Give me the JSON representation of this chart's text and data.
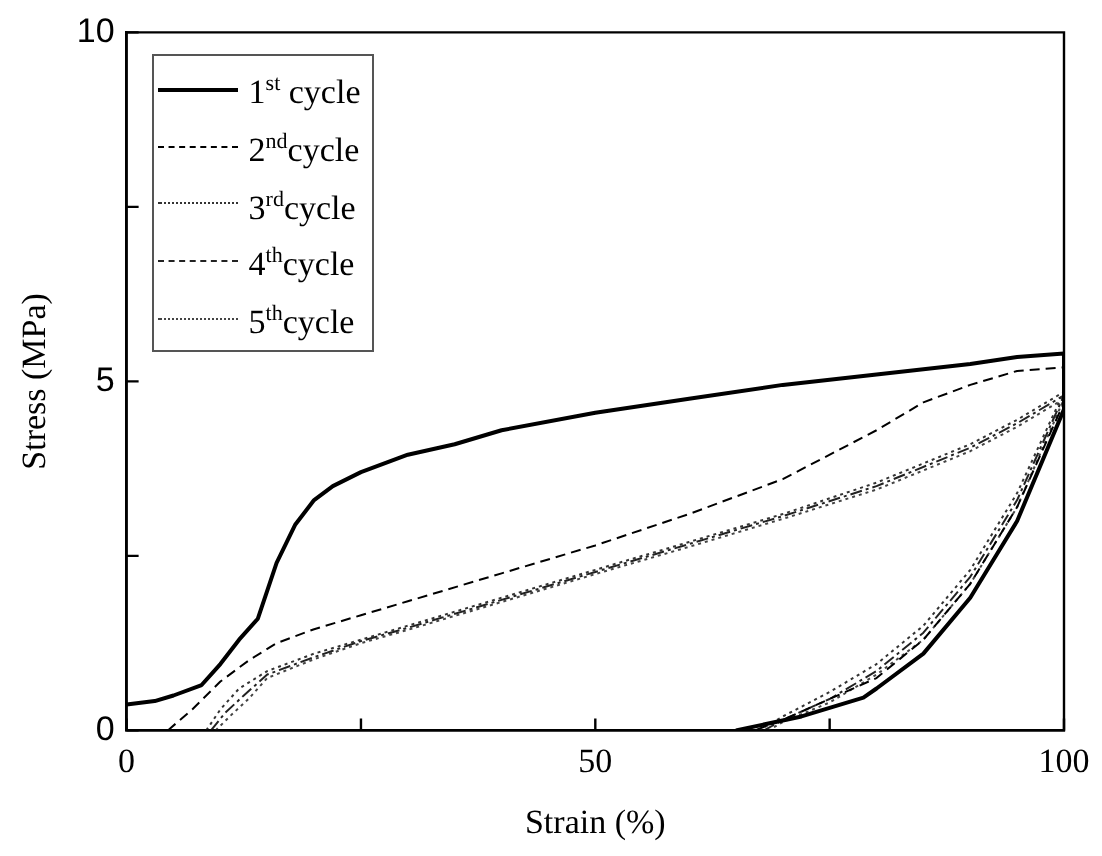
{
  "chart_data": {
    "type": "line",
    "xlabel": "Strain (%)",
    "ylabel": "Stress (MPa)",
    "xlim": [
      0,
      100
    ],
    "ylim": [
      0,
      10
    ],
    "xticks": [
      0,
      {
        "value": 25,
        "label": null
      },
      50,
      {
        "value": 75,
        "label": null
      },
      100
    ],
    "yticks": [
      0,
      {
        "value": 2.5,
        "label": null
      },
      5,
      {
        "value": 7.5,
        "label": null
      },
      10
    ],
    "legend": "top left",
    "series": [
      {
        "name": "1$^{st}$ cycle",
        "color": "#000000",
        "line_style": "solid",
        "x": [
          0,
          3,
          5,
          8,
          10,
          12,
          14,
          16,
          18,
          20,
          22,
          25,
          30,
          35,
          40,
          50,
          60,
          70,
          80,
          90,
          95,
          100,
          100,
          95,
          90,
          85,
          80,
          78.6,
          72,
          65
        ],
        "values": [
          0.37,
          0.42,
          0.5,
          0.65,
          0.95,
          1.3,
          1.6,
          2.4,
          2.95,
          3.3,
          3.5,
          3.7,
          3.95,
          4.1,
          4.3,
          4.55,
          4.75,
          4.95,
          5.1,
          5.25,
          5.35,
          5.4,
          4.6,
          3.0,
          1.9,
          1.1,
          0.6,
          0.47,
          0.2,
          0
        ]
      },
      {
        "name": "2$^{nd}$cycle",
        "color": "#000000",
        "line_style": "dashed",
        "x": [
          4.4,
          7,
          10,
          13,
          16,
          20,
          25,
          30,
          40,
          50,
          60,
          70,
          80,
          85,
          90,
          95,
          100,
          100,
          95,
          90,
          85,
          80,
          75,
          70,
          67
        ],
        "values": [
          0,
          0.3,
          0.7,
          1.0,
          1.25,
          1.45,
          1.65,
          1.85,
          2.25,
          2.65,
          3.1,
          3.6,
          4.3,
          4.7,
          4.95,
          5.15,
          5.2,
          4.7,
          3.2,
          2.1,
          1.3,
          0.75,
          0.45,
          0.15,
          0
        ]
      },
      {
        "name": "3$^{rd}$cycle",
        "color": "#333333",
        "line_style": "dotted",
        "x": [
          8.5,
          10,
          12,
          15,
          20,
          25,
          30,
          40,
          50,
          60,
          70,
          80,
          90,
          95,
          100,
          95,
          90,
          85,
          80,
          75,
          70,
          67.5
        ],
        "values": [
          0,
          0.3,
          0.6,
          0.85,
          1.1,
          1.3,
          1.5,
          1.9,
          2.3,
          2.7,
          3.1,
          3.55,
          4.1,
          4.45,
          4.85,
          3.4,
          2.3,
          1.5,
          0.95,
          0.55,
          0.2,
          0
        ]
      },
      {
        "name": "4$^{th}$cycle",
        "color": "#222222",
        "line_style": "dashdot",
        "x": [
          9,
          10.5,
          12.5,
          15,
          20,
          25,
          30,
          40,
          50,
          60,
          70,
          80,
          90,
          95,
          100,
          95,
          90,
          85,
          80,
          75,
          70,
          68
        ],
        "values": [
          0,
          0.25,
          0.5,
          0.8,
          1.05,
          1.28,
          1.47,
          1.87,
          2.27,
          2.67,
          3.07,
          3.5,
          4.05,
          4.4,
          4.8,
          3.3,
          2.2,
          1.4,
          0.85,
          0.45,
          0.15,
          0
        ]
      },
      {
        "name": "5$^{th}$cycle",
        "color": "#444444",
        "line_style": "dotted",
        "x": [
          9.5,
          11,
          13,
          15,
          20,
          25,
          30,
          40,
          50,
          60,
          70,
          80,
          90,
          95,
          100,
          95,
          90,
          85,
          80,
          75,
          70,
          68.5
        ],
        "values": [
          0,
          0.2,
          0.45,
          0.75,
          1.02,
          1.25,
          1.44,
          1.84,
          2.24,
          2.63,
          3.03,
          3.45,
          4.0,
          4.35,
          4.75,
          3.2,
          2.1,
          1.3,
          0.8,
          0.4,
          0.12,
          0
        ]
      }
    ]
  }
}
